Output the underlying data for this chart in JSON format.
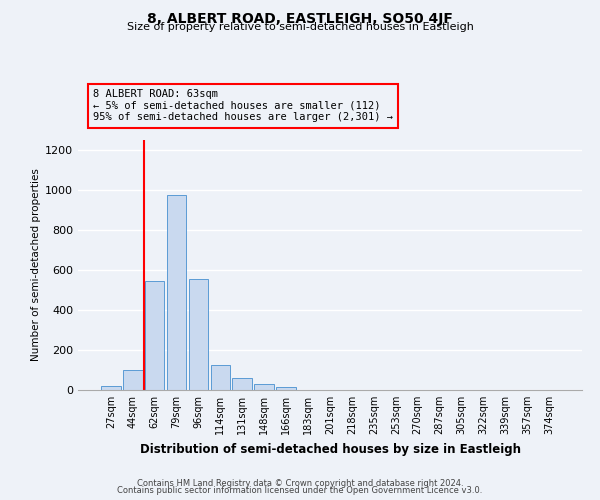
{
  "title": "8, ALBERT ROAD, EASTLEIGH, SO50 4JF",
  "subtitle": "Size of property relative to semi-detached houses in Eastleigh",
  "bar_labels": [
    "27sqm",
    "44sqm",
    "62sqm",
    "79sqm",
    "96sqm",
    "114sqm",
    "131sqm",
    "148sqm",
    "166sqm",
    "183sqm",
    "201sqm",
    "218sqm",
    "235sqm",
    "253sqm",
    "270sqm",
    "287sqm",
    "305sqm",
    "322sqm",
    "339sqm",
    "357sqm",
    "374sqm"
  ],
  "bar_values": [
    20,
    100,
    545,
    975,
    555,
    125,
    60,
    30,
    15,
    0,
    0,
    0,
    0,
    0,
    0,
    0,
    0,
    0,
    0,
    0,
    0
  ],
  "bar_color": "#c9d9ef",
  "bar_edge_color": "#5b9bd5",
  "vline_color": "red",
  "vline_linewidth": 1.5,
  "vline_x_index": 2,
  "ylabel": "Number of semi-detached properties",
  "xlabel": "Distribution of semi-detached houses by size in Eastleigh",
  "ylim": [
    0,
    1250
  ],
  "yticks": [
    0,
    200,
    400,
    600,
    800,
    1000,
    1200
  ],
  "annotation_line1": "8 ALBERT ROAD: 63sqm",
  "annotation_line2": "← 5% of semi-detached houses are smaller (112)",
  "annotation_line3": "95% of semi-detached houses are larger (2,301) →",
  "annotation_box_color": "red",
  "footer_line1": "Contains HM Land Registry data © Crown copyright and database right 2024.",
  "footer_line2": "Contains public sector information licensed under the Open Government Licence v3.0.",
  "background_color": "#eef2f8",
  "grid_color": "white"
}
